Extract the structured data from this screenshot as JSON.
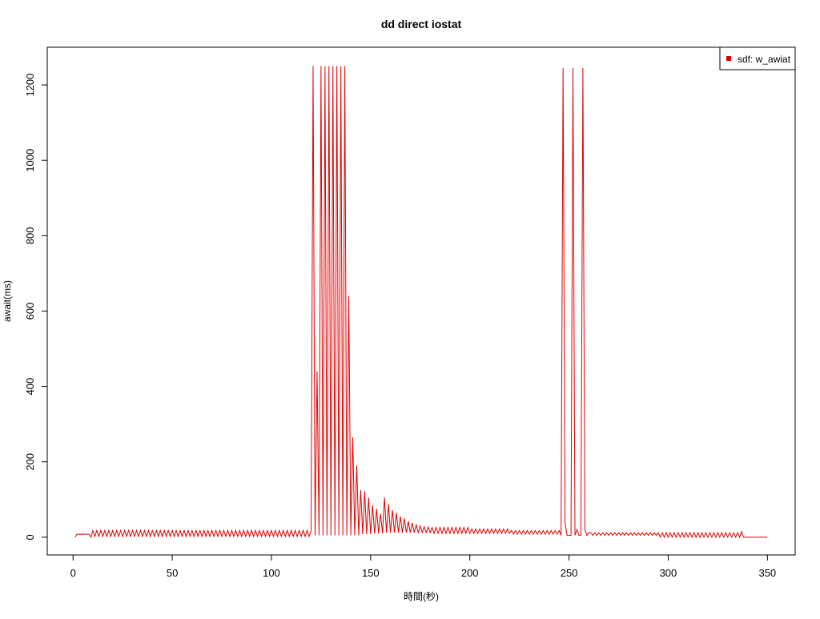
{
  "chart_data": {
    "type": "line",
    "title": "dd direct iostat",
    "xlabel": "時間(秒)",
    "ylabel": "await(ms)",
    "legend": "topright",
    "xlim": [
      -13,
      364
    ],
    "xticks": [
      0,
      50,
      100,
      150,
      200,
      250,
      300,
      350
    ],
    "ylim": [
      -47,
      1300
    ],
    "yticks": [
      0,
      200,
      400,
      600,
      800,
      1000,
      1200
    ],
    "x": [
      1,
      2,
      3,
      4,
      5,
      6,
      7,
      8,
      9,
      10,
      11,
      12,
      13,
      14,
      15,
      16,
      17,
      18,
      19,
      20,
      21,
      22,
      23,
      24,
      25,
      26,
      27,
      28,
      29,
      30,
      31,
      32,
      33,
      34,
      35,
      36,
      37,
      38,
      39,
      40,
      41,
      42,
      43,
      44,
      45,
      46,
      47,
      48,
      49,
      50,
      51,
      52,
      53,
      54,
      55,
      56,
      57,
      58,
      59,
      60,
      61,
      62,
      63,
      64,
      65,
      66,
      67,
      68,
      69,
      70,
      71,
      72,
      73,
      74,
      75,
      76,
      77,
      78,
      79,
      80,
      81,
      82,
      83,
      84,
      85,
      86,
      87,
      88,
      89,
      90,
      91,
      92,
      93,
      94,
      95,
      96,
      97,
      98,
      99,
      100,
      101,
      102,
      103,
      104,
      105,
      106,
      107,
      108,
      109,
      110,
      111,
      112,
      113,
      114,
      115,
      116,
      117,
      118,
      119,
      120,
      121,
      122,
      123,
      124,
      125,
      126,
      127,
      128,
      129,
      130,
      131,
      132,
      133,
      134,
      135,
      136,
      137,
      138,
      139,
      140,
      141,
      142,
      143,
      144,
      145,
      146,
      147,
      148,
      149,
      150,
      151,
      152,
      153,
      154,
      155,
      156,
      157,
      158,
      159,
      160,
      161,
      162,
      163,
      164,
      165,
      166,
      167,
      168,
      169,
      170,
      171,
      172,
      173,
      174,
      175,
      176,
      177,
      178,
      179,
      180,
      181,
      182,
      183,
      184,
      185,
      186,
      187,
      188,
      189,
      190,
      191,
      192,
      193,
      194,
      195,
      196,
      197,
      198,
      199,
      200,
      201,
      202,
      203,
      204,
      205,
      206,
      207,
      208,
      209,
      210,
      211,
      212,
      213,
      214,
      215,
      216,
      217,
      218,
      219,
      220,
      221,
      222,
      223,
      224,
      225,
      226,
      227,
      228,
      229,
      230,
      231,
      232,
      233,
      234,
      235,
      236,
      237,
      238,
      239,
      240,
      241,
      242,
      243,
      244,
      245,
      246,
      247,
      248,
      249,
      250,
      251,
      252,
      253,
      254,
      255,
      256,
      257,
      258,
      259,
      260,
      261,
      262,
      263,
      264,
      265,
      266,
      267,
      268,
      269,
      270,
      271,
      272,
      273,
      274,
      275,
      276,
      277,
      278,
      279,
      280,
      281,
      282,
      283,
      284,
      285,
      286,
      287,
      288,
      289,
      290,
      291,
      292,
      293,
      294,
      295,
      296,
      297,
      298,
      299,
      300,
      301,
      302,
      303,
      304,
      305,
      306,
      307,
      308,
      309,
      310,
      311,
      312,
      313,
      314,
      315,
      316,
      317,
      318,
      319,
      320,
      321,
      322,
      323,
      324,
      325,
      326,
      327,
      328,
      329,
      330,
      331,
      332,
      333,
      334,
      335,
      336,
      337,
      338,
      339,
      340,
      341,
      342,
      343,
      344,
      345,
      346,
      347,
      348,
      349,
      350
    ],
    "series": [
      {
        "name": "sdf: w_awiat",
        "color": "#e00000",
        "values": [
          0,
          8,
          8,
          8,
          8,
          8,
          8,
          8,
          0,
          18,
          2,
          18,
          2,
          18,
          2,
          18,
          2,
          18,
          2,
          18,
          2,
          18,
          2,
          18,
          2,
          18,
          2,
          18,
          2,
          18,
          2,
          18,
          2,
          18,
          2,
          18,
          2,
          18,
          2,
          18,
          2,
          18,
          2,
          18,
          2,
          18,
          2,
          18,
          2,
          18,
          2,
          18,
          2,
          18,
          2,
          18,
          2,
          18,
          2,
          18,
          2,
          18,
          2,
          18,
          2,
          18,
          2,
          18,
          2,
          18,
          2,
          18,
          2,
          18,
          2,
          18,
          2,
          18,
          2,
          18,
          2,
          18,
          2,
          18,
          2,
          18,
          2,
          18,
          2,
          18,
          2,
          18,
          2,
          18,
          2,
          18,
          2,
          18,
          2,
          18,
          2,
          18,
          2,
          18,
          2,
          18,
          2,
          18,
          2,
          18,
          2,
          18,
          2,
          18,
          2,
          18,
          2,
          18,
          2,
          18,
          1250,
          5,
          440,
          5,
          1250,
          5,
          1250,
          5,
          1250,
          5,
          1250,
          5,
          1250,
          5,
          1250,
          5,
          1250,
          5,
          640,
          5,
          265,
          5,
          190,
          5,
          125,
          8,
          122,
          8,
          105,
          8,
          85,
          10,
          75,
          10,
          62,
          10,
          105,
          12,
          88,
          12,
          72,
          12,
          65,
          12,
          55,
          12,
          50,
          12,
          42,
          12,
          38,
          12,
          34,
          12,
          30,
          12,
          28,
          12,
          27,
          12,
          26,
          10,
          26,
          10,
          26,
          10,
          26,
          10,
          26,
          10,
          26,
          10,
          26,
          10,
          26,
          10,
          26,
          10,
          26,
          10,
          22,
          10,
          22,
          10,
          22,
          10,
          22,
          10,
          22,
          10,
          22,
          10,
          22,
          10,
          22,
          10,
          22,
          10,
          22,
          10,
          18,
          8,
          18,
          8,
          18,
          8,
          18,
          8,
          18,
          8,
          18,
          8,
          18,
          8,
          18,
          8,
          18,
          8,
          18,
          8,
          18,
          8,
          18,
          8,
          18,
          5,
          1245,
          40,
          5,
          5,
          5,
          1245,
          5,
          20,
          5,
          5,
          1245,
          20,
          5,
          12,
          12,
          5,
          12,
          5,
          12,
          5,
          12,
          5,
          12,
          5,
          12,
          5,
          12,
          5,
          12,
          5,
          12,
          5,
          12,
          5,
          12,
          5,
          12,
          5,
          12,
          5,
          12,
          5,
          12,
          5,
          12,
          5,
          12,
          5,
          12,
          0,
          12,
          0,
          12,
          0,
          12,
          0,
          12,
          0,
          12,
          0,
          12,
          0,
          12,
          0,
          12,
          0,
          12,
          0,
          12,
          0,
          12,
          0,
          12,
          0,
          12,
          0,
          12,
          0,
          12,
          0,
          12,
          0,
          12,
          0,
          12,
          0,
          12,
          0,
          12,
          0,
          15,
          0,
          0,
          0,
          0,
          0,
          0,
          0,
          0,
          0,
          0,
          0,
          0,
          0
        ]
      }
    ]
  }
}
